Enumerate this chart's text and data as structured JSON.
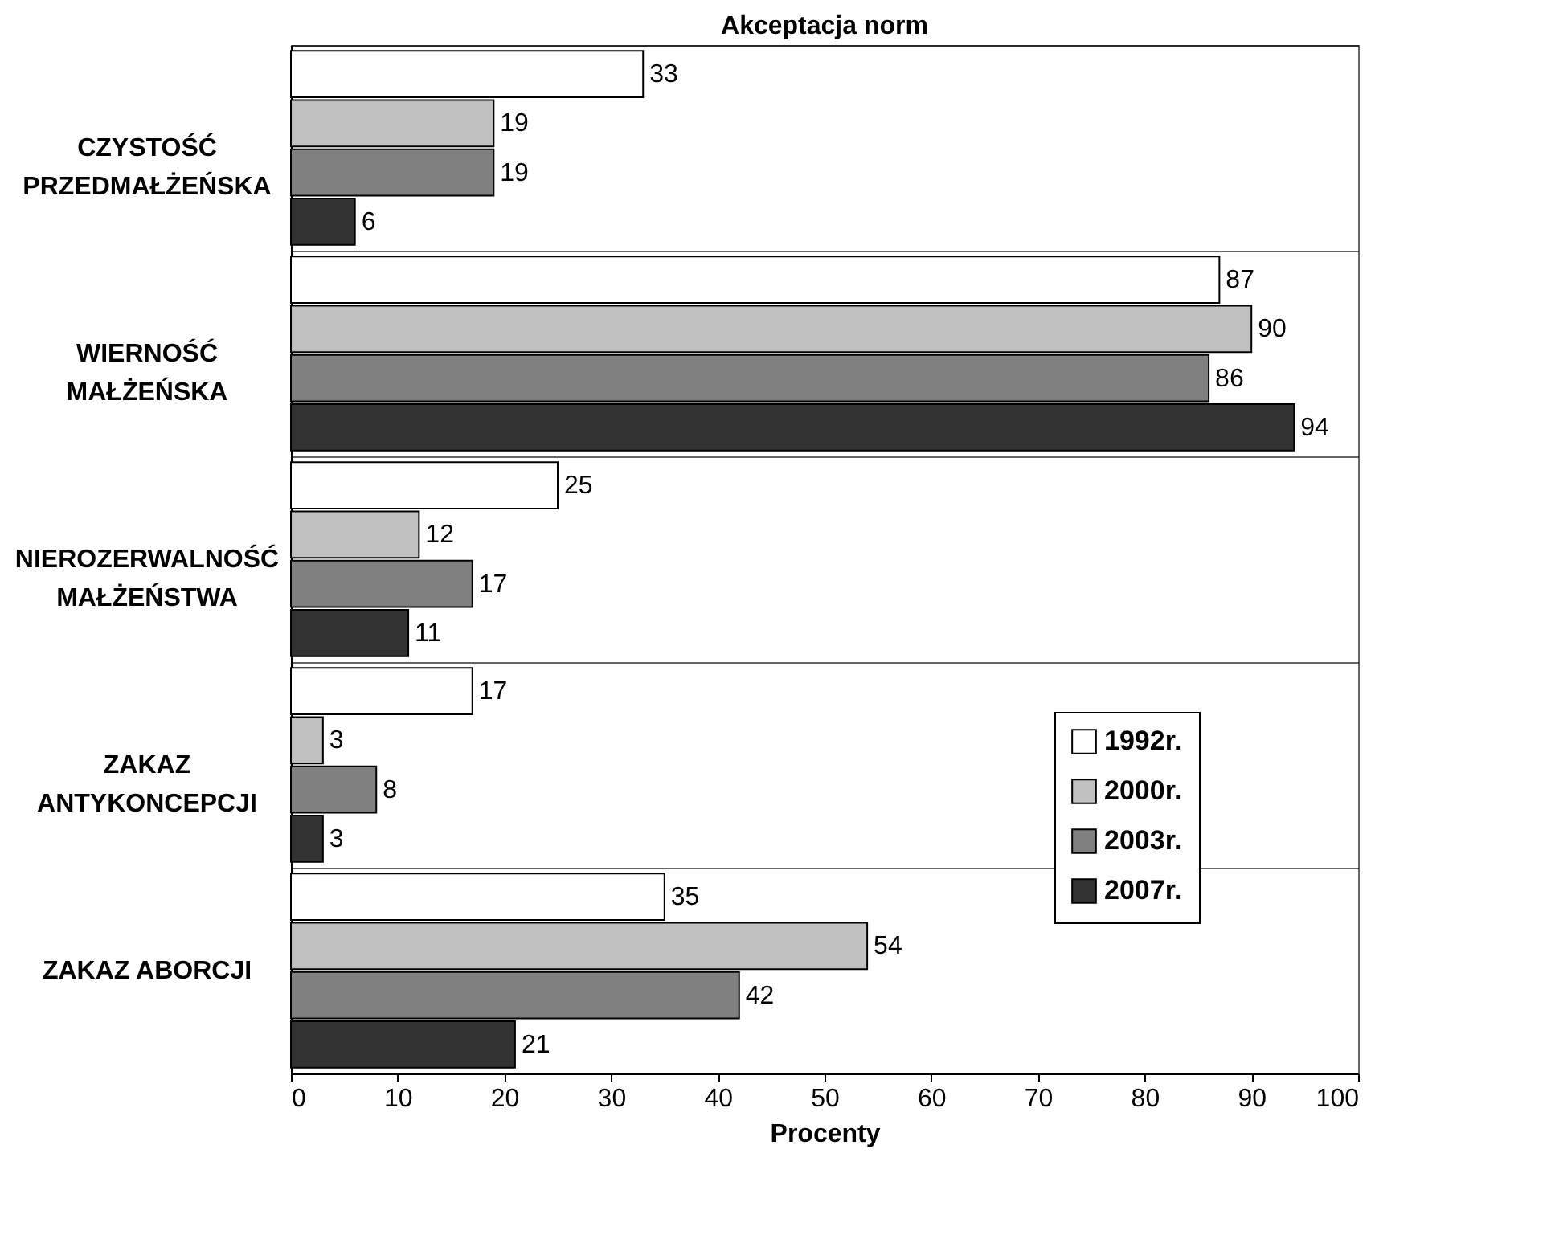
{
  "chart_data": {
    "type": "bar",
    "orientation": "horizontal",
    "title": "Akceptacja norm",
    "xlabel": "Procenty",
    "categories": [
      "CZYSTOŚĆ\nPRZEDMAŁŻEŃSKA",
      "WIERNOŚĆ\nMAŁŻEŃSKA",
      "NIEROZERWALNOŚĆ\nMAŁŻEŃSTWA",
      "ZAKAZ\nANTYKONCEPCJI",
      "ZAKAZ ABORCJI"
    ],
    "series": [
      {
        "name": "1992r.",
        "color": "#ffffff",
        "values": [
          33,
          87,
          25,
          17,
          35
        ]
      },
      {
        "name": "2000r.",
        "color": "#c0c0c0",
        "values": [
          19,
          90,
          12,
          3,
          54
        ]
      },
      {
        "name": "2003r.",
        "color": "#808080",
        "values": [
          19,
          86,
          17,
          8,
          42
        ]
      },
      {
        "name": "2007r.",
        "color": "#333333",
        "values": [
          6,
          94,
          11,
          3,
          21
        ]
      }
    ],
    "xlim": [
      0,
      100
    ],
    "xticks": [
      0,
      10,
      20,
      30,
      40,
      50,
      60,
      70,
      80,
      90,
      100
    ],
    "grid": "y",
    "legend": "right",
    "data_labels": true
  }
}
